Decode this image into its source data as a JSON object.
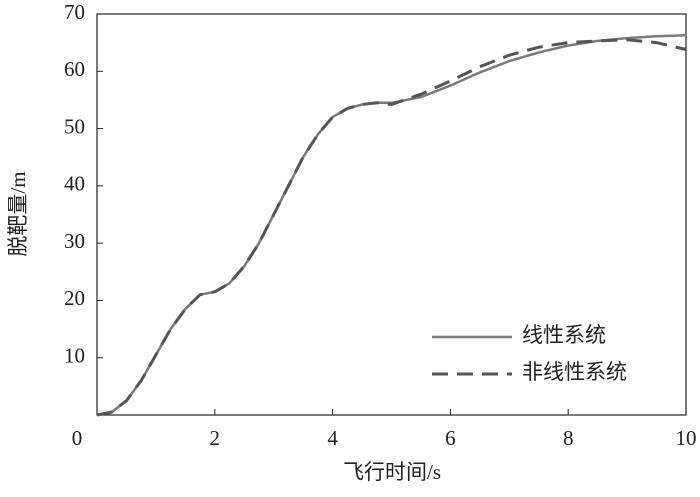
{
  "chart_data": {
    "type": "line",
    "x_label": "飞行时间/s",
    "y_label": "脱靶量/m",
    "x": [
      0,
      0.25,
      0.5,
      0.75,
      1,
      1.25,
      1.5,
      1.75,
      2,
      2.25,
      2.5,
      2.75,
      3,
      3.25,
      3.5,
      3.75,
      4,
      4.25,
      4.5,
      4.75,
      5,
      5.5,
      6,
      6.5,
      7,
      7.5,
      8,
      8.5,
      9,
      9.5,
      10
    ],
    "series": [
      {
        "name": "线性系统",
        "color": "#7a7a7a",
        "dash": false,
        "values": [
          0,
          0.5,
          2.5,
          6,
          10.5,
          15,
          18.5,
          21,
          21.5,
          23,
          26,
          30,
          35,
          40,
          45,
          49,
          52,
          53.5,
          54.2,
          54.5,
          54.5,
          55.5,
          57.5,
          59.8,
          61.8,
          63.3,
          64.5,
          65.3,
          65.8,
          66.1,
          66.3
        ]
      },
      {
        "name": "非线性系统",
        "color": "#555555",
        "dash": true,
        "values": [
          0,
          0.5,
          2.5,
          6,
          10.5,
          15,
          18.5,
          21,
          21.5,
          23,
          26,
          30,
          35,
          40,
          45,
          49,
          52,
          53.5,
          54.2,
          54.5,
          54.2,
          56,
          58.3,
          60.8,
          62.8,
          64.2,
          65,
          65.3,
          65.5,
          65,
          63.8
        ]
      }
    ],
    "xlim": [
      0,
      10
    ],
    "xticks": [
      0,
      2,
      4,
      6,
      8,
      10
    ],
    "ylim": [
      0,
      70
    ],
    "yticks": [
      10,
      20,
      30,
      40,
      50,
      60,
      70
    ],
    "grid": false,
    "legend": "lower right"
  }
}
